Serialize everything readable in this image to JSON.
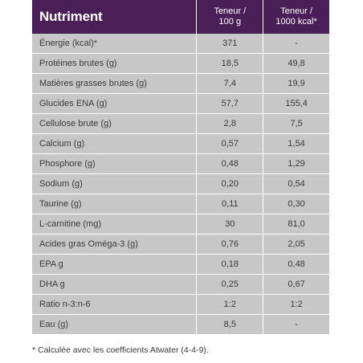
{
  "table": {
    "header": {
      "nutrient": "Nutriment",
      "col1_line1": "Teneur /",
      "col1_line2": "100 g",
      "col2_line1": "Teneur /",
      "col2_line2": "1000 kcal*"
    },
    "rows": [
      {
        "name": "Énergie (kcal)*",
        "per100g": "371",
        "per1000kcal": "-"
      },
      {
        "name": "Protéines brutes (g)",
        "per100g": "18,5",
        "per1000kcal": "49,8"
      },
      {
        "name": "Matières grasses brutes (g)",
        "per100g": "7,4",
        "per1000kcal": "19,9"
      },
      {
        "name": "Glucides ENA (g)",
        "per100g": "57,7",
        "per1000kcal": "155,4"
      },
      {
        "name": "Cellulose brute (g)",
        "per100g": "2,8",
        "per1000kcal": "7,5"
      },
      {
        "name": "Calcium (g)",
        "per100g": "0,57",
        "per1000kcal": "1,54"
      },
      {
        "name": "Phosphore (g)",
        "per100g": "0,48",
        "per1000kcal": "1,29"
      },
      {
        "name": "Sodium (g)",
        "per100g": "0,20",
        "per1000kcal": "0,54"
      },
      {
        "name": "Taurine (g)",
        "per100g": "0,11",
        "per1000kcal": "0,30"
      },
      {
        "name": "L-carnitine (mg)",
        "per100g": "30",
        "per1000kcal": "81,0"
      },
      {
        "name": "Acides gras Oméga-3 (g)",
        "per100g": "0,76",
        "per1000kcal": "2,05"
      },
      {
        "name": "EPA  g",
        "per100g": "0,18",
        "per1000kcal": "0,48"
      },
      {
        "name": "DHA  g",
        "per100g": "0,25",
        "per1000kcal": "0,67"
      },
      {
        "name": "Ratio n-3:n-6",
        "per100g": "1:2",
        "per1000kcal": "1:2"
      },
      {
        "name": "Eau (g)",
        "per100g": "8,5",
        "per1000kcal": "-"
      }
    ]
  },
  "footnote": "* Calculée avec les coefficients Atwater (4-4-9).",
  "colors": {
    "header_bg": "#4a1f57",
    "cell_bg": "#c7c7c7"
  }
}
